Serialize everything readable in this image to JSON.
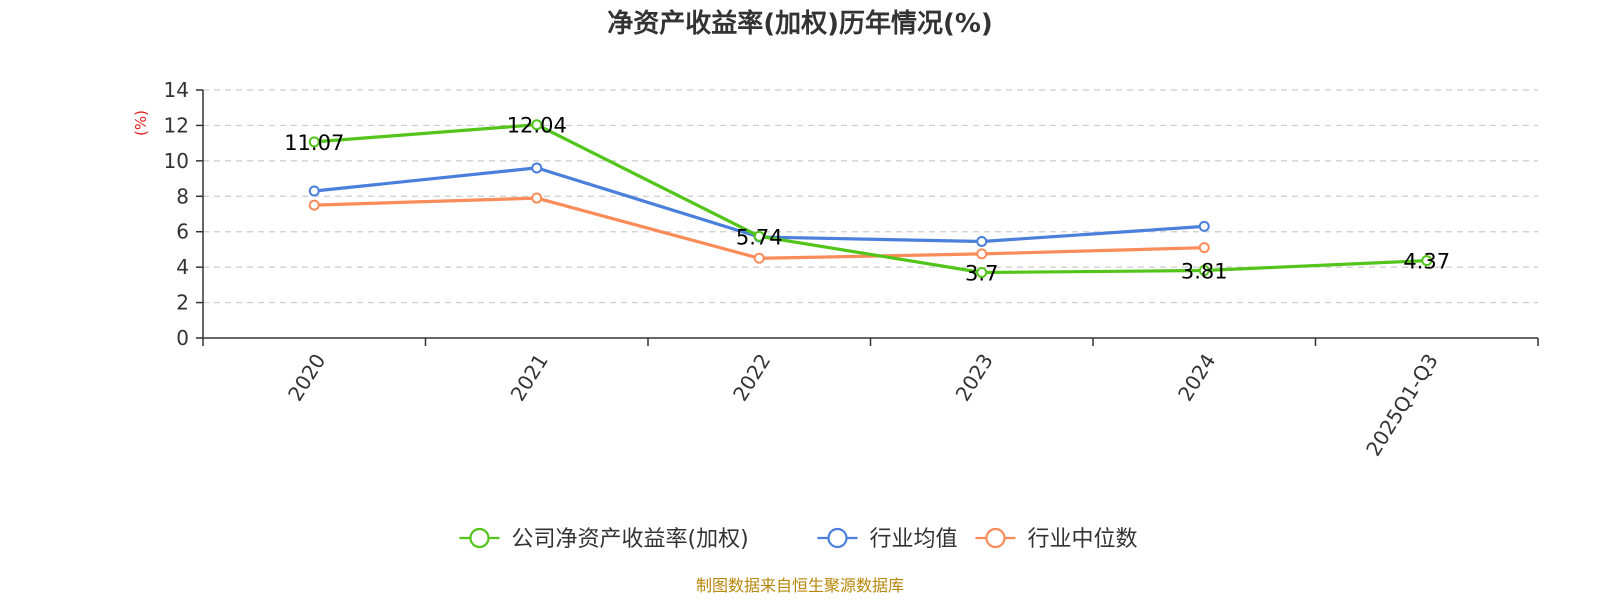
{
  "chart_data": {
    "type": "line",
    "title": "净资产收益率(加权)历年情况(%)",
    "ylabel": "(%)",
    "ylim": [
      0,
      14
    ],
    "yticks": [
      "0",
      "2",
      "4",
      "6",
      "8",
      "10",
      "12",
      "14"
    ],
    "categories": [
      "2020",
      "2021",
      "2022",
      "2023",
      "2024",
      "2025Q1-Q3"
    ],
    "grid": true,
    "legend_position": "bottom",
    "series": [
      {
        "name": "公司净资产收益率(加权)",
        "color": "#52c41a",
        "values": [
          11.07,
          12.04,
          5.74,
          3.7,
          3.81,
          4.37
        ],
        "labels": [
          "11.07",
          "12.04",
          "5.74",
          "3.7",
          "3.81",
          "4.37"
        ]
      },
      {
        "name": "行业均值",
        "color": "#4a7fdb",
        "values": [
          8.3,
          9.6,
          5.7,
          5.45,
          6.3,
          null
        ]
      },
      {
        "name": "行业中位数",
        "color": "#fa8c5a",
        "values": [
          7.5,
          7.9,
          4.5,
          4.75,
          5.1,
          null
        ]
      }
    ],
    "source": "制图数据来自恒生聚源数据库",
    "ylabel_color": "#e02020",
    "source_color": "#b8860b"
  }
}
